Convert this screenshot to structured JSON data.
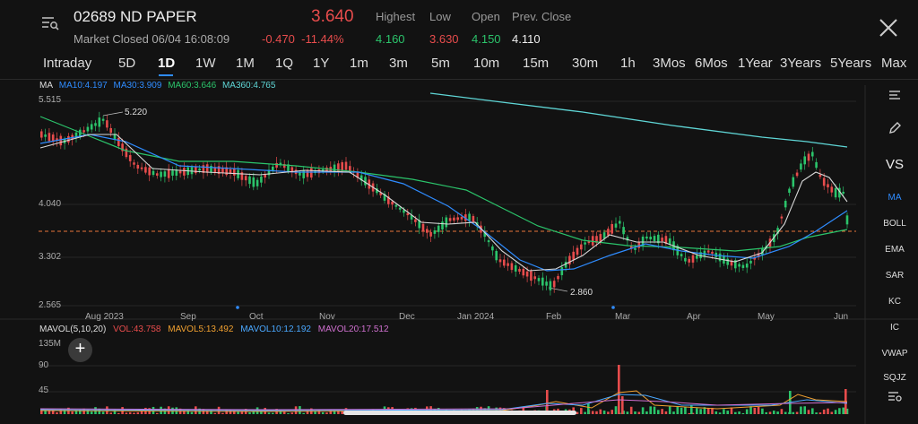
{
  "header": {
    "title": "02689 ND PAPER",
    "status": "Market Closed 06/04 16:08:09",
    "price": "3.640",
    "change": "-0.470",
    "change_pct": "-11.44%",
    "highest_label": "Highest",
    "highest_value": "4.160",
    "low_label": "Low",
    "low_value": "3.630",
    "open_label": "Open",
    "open_value": "4.150",
    "prev_close_label": "Prev. Close",
    "prev_close_value": "4.110"
  },
  "tabs": [
    "Intraday",
    "5D",
    "1D",
    "1W",
    "1M",
    "1Q",
    "1Y",
    "1m",
    "3m",
    "5m",
    "10m",
    "15m",
    "30m",
    "1h",
    "3Mos",
    "6Mos",
    "1Year",
    "3Years",
    "5Years",
    "Max"
  ],
  "active_tab": "1D",
  "ma_legend": {
    "ma": "MA",
    "ma10": "MA10:4.197",
    "ma30": "MA30:3.909",
    "ma60": "MA60:3.646",
    "ma360": "MA360:4.765"
  },
  "vol_legend": {
    "mavol": "MAVOL(5,10,20)",
    "vol": "VOL:43.758",
    "mavol5": "MAVOL5:13.492",
    "mavol10": "MAVOL10:12.192",
    "mavol20": "MAVOL20:17.512"
  },
  "y_axis": [
    "5.515",
    "4.040",
    "3.302",
    "2.565"
  ],
  "vol_axis": [
    "135M",
    "90",
    "45"
  ],
  "x_axis": [
    "Aug 2023",
    "Sep",
    "Oct",
    "Nov",
    "Dec",
    "Jan 2024",
    "Feb",
    "Mar",
    "Apr",
    "May",
    "Jun"
  ],
  "annotations": {
    "high": "5.220",
    "low": "2.860"
  },
  "side_items": [
    "BOLL",
    "EMA",
    "SAR",
    "KC",
    "IC",
    "VWAP",
    "SQJZ"
  ],
  "side_active": "MA",
  "side_vs": "VS",
  "colors": {
    "up": "#2bc46b",
    "down": "#e74c4c",
    "ma10": "#d9d9d9",
    "ma30": "#2f8cff",
    "ma60": "#2bc46b",
    "ma360": "#5fd6d6",
    "mavol5": "#f0a030",
    "mavol10": "#4aa8ff",
    "mavol20": "#d070d0"
  }
}
